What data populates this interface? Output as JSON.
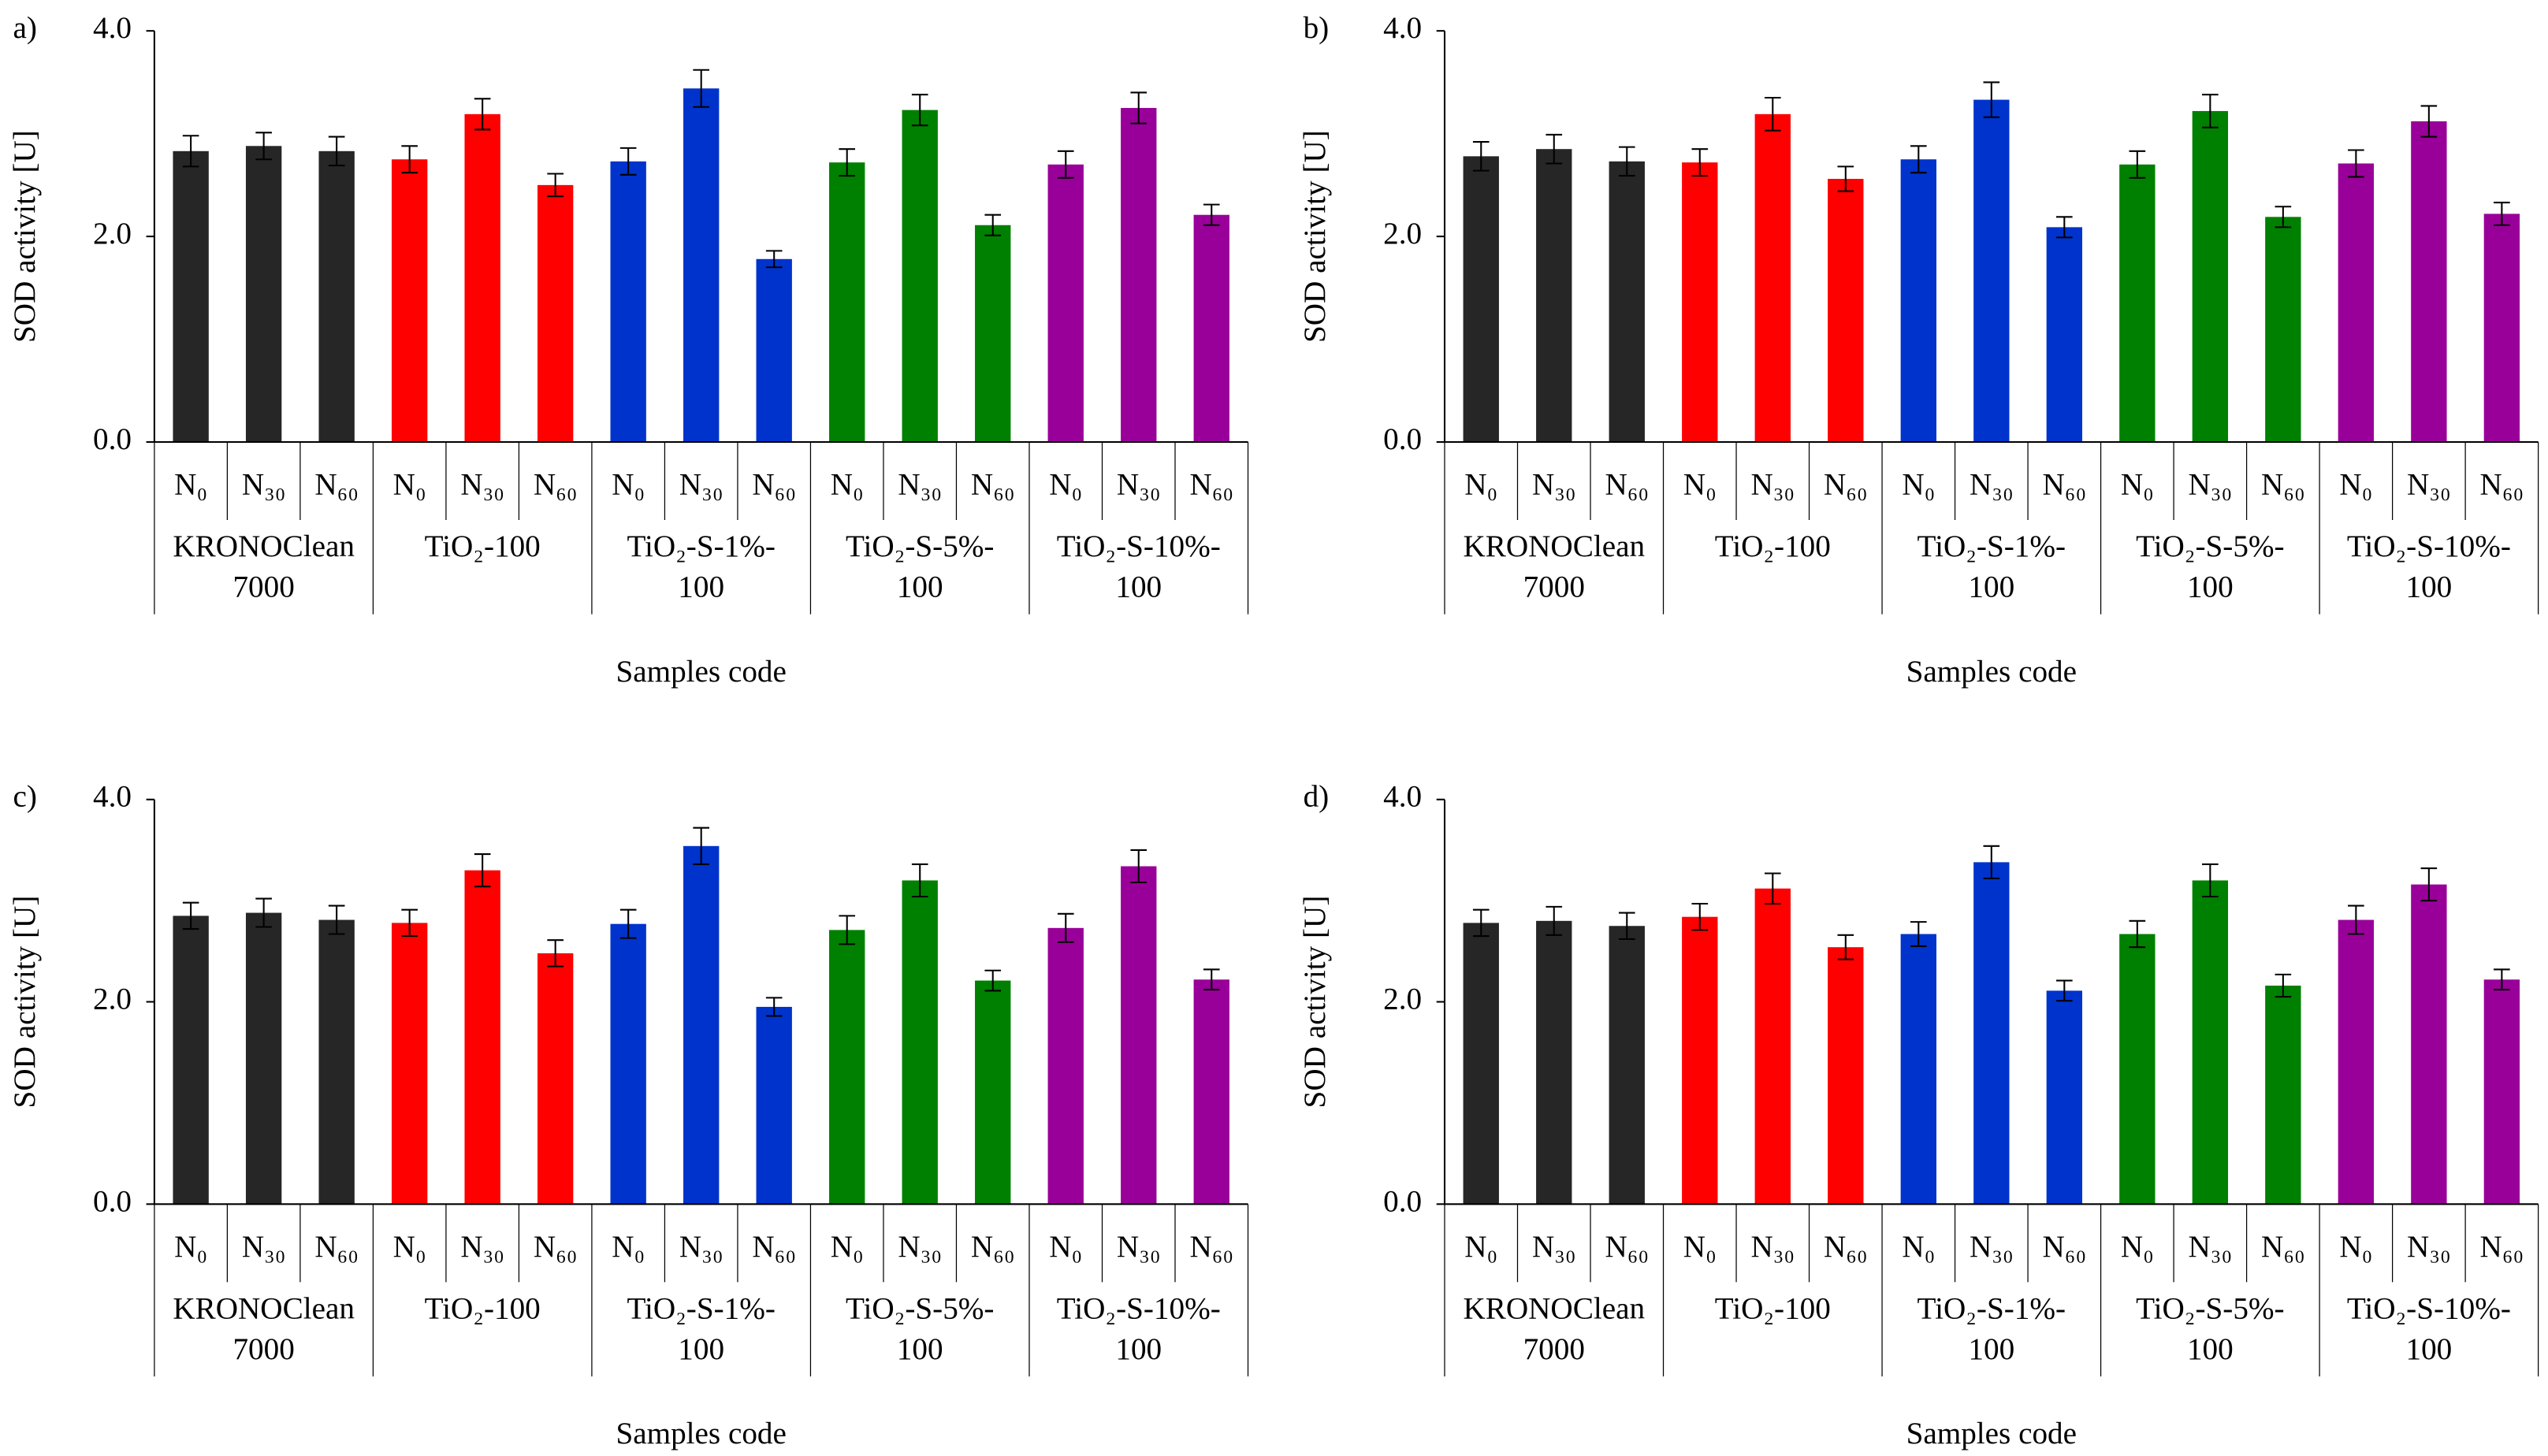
{
  "chart_data": [
    {
      "type": "bar",
      "panel": "a)",
      "ylabel": "SOD activity [U]",
      "xlabel": "Samples code",
      "ylim": [
        0,
        4
      ],
      "yticks": [
        {
          "value": 0,
          "label": "0.0"
        },
        {
          "value": 2,
          "label": "2.0"
        },
        {
          "value": 4,
          "label": "4.0"
        }
      ],
      "grid": false,
      "categories": [
        "N₀",
        "N₃₀",
        "N₆₀",
        "N₀",
        "N₃₀",
        "N₆₀",
        "N₀",
        "N₃₀",
        "N₆₀",
        "N₀",
        "N₃₀",
        "N₆₀",
        "N₀",
        "N₃₀",
        "N₆₀"
      ],
      "groups": [
        {
          "label": [
            "KRONOClean",
            "7000"
          ],
          "color": "#262626"
        },
        {
          "label": [
            "TiO₂-100"
          ],
          "color": "#ff0000"
        },
        {
          "label": [
            "TiO₂-S-1%-",
            "100"
          ],
          "color": "#0033cc"
        },
        {
          "label": [
            "TiO₂-S-5%-",
            "100"
          ],
          "color": "#008000"
        },
        {
          "label": [
            "TiO₂-S-10%-",
            "100"
          ],
          "color": "#990099"
        }
      ],
      "values": [
        2.83,
        2.88,
        2.83,
        2.75,
        3.19,
        2.5,
        2.73,
        3.44,
        1.78,
        2.72,
        3.23,
        2.11,
        2.7,
        3.25,
        2.21
      ],
      "errors": [
        0.15,
        0.13,
        0.14,
        0.13,
        0.15,
        0.11,
        0.13,
        0.18,
        0.08,
        0.13,
        0.15,
        0.1,
        0.13,
        0.15,
        0.1
      ]
    },
    {
      "type": "bar",
      "panel": "b)",
      "ylabel": "SOD activity [U]",
      "xlabel": "Samples code",
      "ylim": [
        0,
        4
      ],
      "yticks": [
        {
          "value": 0,
          "label": "0.0"
        },
        {
          "value": 2,
          "label": "2.0"
        },
        {
          "value": 4,
          "label": "4.0"
        }
      ],
      "grid": false,
      "categories": [
        "N₀",
        "N₃₀",
        "N₆₀",
        "N₀",
        "N₃₀",
        "N₆₀",
        "N₀",
        "N₃₀",
        "N₆₀",
        "N₀",
        "N₃₀",
        "N₆₀",
        "N₀",
        "N₃₀",
        "N₆₀"
      ],
      "groups": [
        {
          "label": [
            "KRONOClean",
            "7000"
          ],
          "color": "#262626"
        },
        {
          "label": [
            "TiO₂-100"
          ],
          "color": "#ff0000"
        },
        {
          "label": [
            "TiO₂-S-1%-",
            "100"
          ],
          "color": "#0033cc"
        },
        {
          "label": [
            "TiO₂-S-5%-",
            "100"
          ],
          "color": "#008000"
        },
        {
          "label": [
            "TiO₂-S-10%-",
            "100"
          ],
          "color": "#990099"
        }
      ],
      "values": [
        2.78,
        2.85,
        2.73,
        2.72,
        3.19,
        2.56,
        2.75,
        3.33,
        2.09,
        2.7,
        3.22,
        2.19,
        2.71,
        3.12,
        2.22
      ],
      "errors": [
        0.14,
        0.14,
        0.14,
        0.13,
        0.16,
        0.12,
        0.13,
        0.17,
        0.1,
        0.13,
        0.16,
        0.1,
        0.13,
        0.15,
        0.11
      ]
    },
    {
      "type": "bar",
      "panel": "c)",
      "ylabel": "SOD activity [U]",
      "xlabel": "Samples code",
      "ylim": [
        0,
        4
      ],
      "yticks": [
        {
          "value": 0,
          "label": "0.0"
        },
        {
          "value": 2,
          "label": "2.0"
        },
        {
          "value": 4,
          "label": "4.0"
        }
      ],
      "grid": false,
      "categories": [
        "N₀",
        "N₃₀",
        "N₆₀",
        "N₀",
        "N₃₀",
        "N₆₀",
        "N₀",
        "N₃₀",
        "N₆₀",
        "N₀",
        "N₃₀",
        "N₆₀",
        "N₀",
        "N₃₀",
        "N₆₀"
      ],
      "groups": [
        {
          "label": [
            "KRONOClean",
            "7000"
          ],
          "color": "#262626"
        },
        {
          "label": [
            "TiO₂-100"
          ],
          "color": "#ff0000"
        },
        {
          "label": [
            "TiO₂-S-1%-",
            "100"
          ],
          "color": "#0033cc"
        },
        {
          "label": [
            "TiO₂-S-5%-",
            "100"
          ],
          "color": "#008000"
        },
        {
          "label": [
            "TiO₂-S-10%-",
            "100"
          ],
          "color": "#990099"
        }
      ],
      "values": [
        2.85,
        2.88,
        2.81,
        2.78,
        3.3,
        2.48,
        2.77,
        3.54,
        1.95,
        2.71,
        3.2,
        2.21,
        2.73,
        3.34,
        2.22
      ],
      "errors": [
        0.13,
        0.14,
        0.14,
        0.13,
        0.16,
        0.13,
        0.14,
        0.18,
        0.09,
        0.14,
        0.16,
        0.1,
        0.14,
        0.16,
        0.1
      ]
    },
    {
      "type": "bar",
      "panel": "d)",
      "ylabel": "SOD activity [U]",
      "xlabel": "Samples code",
      "ylim": [
        0,
        4
      ],
      "yticks": [
        {
          "value": 0,
          "label": "0.0"
        },
        {
          "value": 2,
          "label": "2.0"
        },
        {
          "value": 4,
          "label": "4.0"
        }
      ],
      "grid": false,
      "categories": [
        "N₀",
        "N₃₀",
        "N₆₀",
        "N₀",
        "N₃₀",
        "N₆₀",
        "N₀",
        "N₃₀",
        "N₆₀",
        "N₀",
        "N₃₀",
        "N₆₀",
        "N₀",
        "N₃₀",
        "N₆₀"
      ],
      "groups": [
        {
          "label": [
            "KRONOClean",
            "7000"
          ],
          "color": "#262626"
        },
        {
          "label": [
            "TiO₂-100"
          ],
          "color": "#ff0000"
        },
        {
          "label": [
            "TiO₂-S-1%-",
            "100"
          ],
          "color": "#0033cc"
        },
        {
          "label": [
            "TiO₂-S-5%-",
            "100"
          ],
          "color": "#008000"
        },
        {
          "label": [
            "TiO₂-S-10%-",
            "100"
          ],
          "color": "#990099"
        }
      ],
      "values": [
        2.78,
        2.8,
        2.75,
        2.84,
        3.12,
        2.54,
        2.67,
        3.38,
        2.11,
        2.67,
        3.2,
        2.16,
        2.81,
        3.16,
        2.22
      ],
      "errors": [
        0.13,
        0.14,
        0.13,
        0.13,
        0.15,
        0.12,
        0.12,
        0.16,
        0.1,
        0.13,
        0.16,
        0.11,
        0.14,
        0.16,
        0.1
      ]
    }
  ]
}
